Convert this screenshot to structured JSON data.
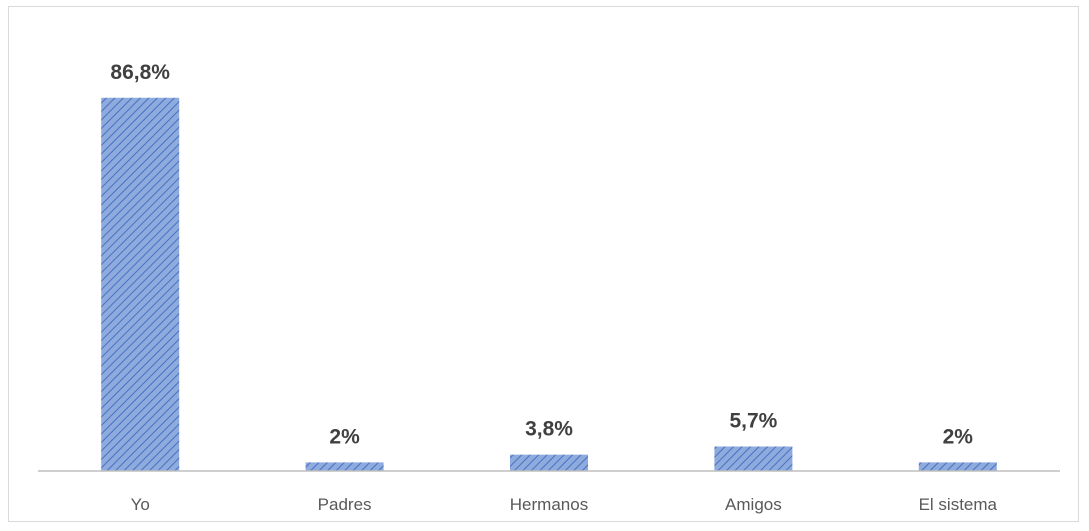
{
  "chart_data": {
    "type": "bar",
    "title": "",
    "xlabel": "",
    "ylabel": "",
    "categories": [
      "Yo",
      "Padres",
      "Hermanos",
      "Amigos",
      "El sistema"
    ],
    "values": [
      86.8,
      2,
      3.8,
      5.7,
      2
    ],
    "data_labels": [
      "86,8%",
      "2%",
      "3,8%",
      "5,7%",
      "2%"
    ],
    "ylim": [
      0,
      100
    ],
    "grid": false,
    "legend": "none",
    "bar_color": "#8faadc",
    "bar_pattern_color": "#4472c4"
  }
}
